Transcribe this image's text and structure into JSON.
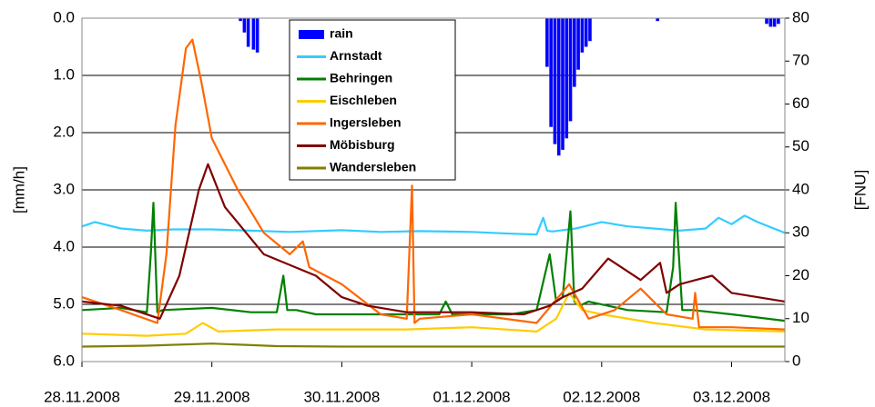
{
  "chart_data": {
    "type": "bar-line",
    "y_label": "[mm/h]",
    "y2_label": "[FNU]",
    "xlim": [
      0,
      5.41
    ],
    "xticks": [
      {
        "value": 0,
        "label": "28.11.2008"
      },
      {
        "value": 1,
        "label": "29.11.2008"
      },
      {
        "value": 2,
        "label": "30.11.2008"
      },
      {
        "value": 3,
        "label": "01.12.2008"
      },
      {
        "value": 4,
        "label": "02.12.2008"
      },
      {
        "value": 5,
        "label": "03.12.2008"
      }
    ],
    "ylim": [
      6,
      0
    ],
    "yticks": [
      {
        "value": 0,
        "label": "0.0"
      },
      {
        "value": 1,
        "label": "1.0"
      },
      {
        "value": 2,
        "label": "2.0"
      },
      {
        "value": 3,
        "label": "3.0"
      },
      {
        "value": 4,
        "label": "4.0"
      },
      {
        "value": 5,
        "label": "5.0"
      },
      {
        "value": 6,
        "label": "6.0"
      }
    ],
    "y2lim": [
      0,
      80
    ],
    "y2ticks": [
      0,
      10,
      20,
      30,
      40,
      50,
      60,
      70,
      80
    ],
    "grid": true,
    "series": [
      {
        "name": "rain",
        "type": "bar",
        "color": "#0000ff",
        "x": [
          1.22,
          1.25,
          1.28,
          1.32,
          1.35,
          3.58,
          3.61,
          3.64,
          3.67,
          3.7,
          3.73,
          3.76,
          3.79,
          3.82,
          3.85,
          3.88,
          3.91,
          4.43,
          5.27,
          5.3,
          5.33,
          5.36
        ],
        "values": [
          0.05,
          0.25,
          0.5,
          0.55,
          0.6,
          0.85,
          1.9,
          2.2,
          2.4,
          2.3,
          2.1,
          1.8,
          1.2,
          0.9,
          0.6,
          0.5,
          0.4,
          0.05,
          0.1,
          0.15,
          0.15,
          0.1
        ]
      },
      {
        "name": "Arnstadt",
        "type": "line",
        "axis": "y2",
        "color": "#33ccff",
        "x": [
          0,
          0.1,
          0.3,
          0.5,
          0.7,
          1.0,
          1.3,
          1.6,
          2.0,
          2.3,
          2.6,
          3.0,
          3.3,
          3.5,
          3.55,
          3.58,
          3.62,
          3.8,
          4.0,
          4.2,
          4.4,
          4.6,
          4.8,
          4.9,
          5.0,
          5.1,
          5.2,
          5.41
        ],
        "values": [
          31.5,
          32.5,
          31,
          30.5,
          30.8,
          30.8,
          30.5,
          30.2,
          30.6,
          30.2,
          30.4,
          30.2,
          29.8,
          29.6,
          33.5,
          30.5,
          30.3,
          31,
          32.5,
          31.5,
          31,
          30.5,
          31,
          33.5,
          32,
          34,
          32.5,
          30
        ]
      },
      {
        "name": "Behringen",
        "type": "line",
        "axis": "y2",
        "color": "#008000",
        "x": [
          0,
          0.3,
          0.5,
          0.53,
          0.55,
          0.58,
          0.62,
          1.0,
          1.3,
          1.5,
          1.55,
          1.58,
          1.65,
          1.8,
          2.3,
          2.75,
          2.8,
          2.85,
          3.3,
          3.5,
          3.6,
          3.65,
          3.7,
          3.76,
          3.79,
          3.83,
          3.9,
          4.2,
          4.5,
          4.55,
          4.57,
          4.62,
          4.7,
          5.0,
          5.41
        ],
        "values": [
          12,
          12.5,
          11.5,
          25,
          37,
          11.5,
          12,
          12.5,
          11.5,
          11.5,
          20,
          12,
          12,
          11,
          11,
          11,
          14,
          11,
          11,
          12,
          25,
          14,
          15,
          35,
          14,
          13,
          14,
          12,
          11.5,
          22,
          37,
          12,
          12,
          11,
          9.5
        ]
      },
      {
        "name": "Eischleben",
        "type": "line",
        "axis": "y2",
        "color": "#ffcc00",
        "x": [
          0,
          0.5,
          0.8,
          0.93,
          1.05,
          1.5,
          2.0,
          2.5,
          3.0,
          3.5,
          3.65,
          3.75,
          3.85,
          4.0,
          4.4,
          4.8,
          5.41
        ],
        "values": [
          6.5,
          6,
          6.5,
          9,
          7,
          7.5,
          7.5,
          7.5,
          8,
          7,
          10,
          16,
          12,
          11,
          9,
          7.5,
          7
        ]
      },
      {
        "name": "Ingersleben",
        "type": "line",
        "axis": "y2",
        "color": "#ff6600",
        "x": [
          0,
          0.3,
          0.58,
          0.65,
          0.72,
          0.8,
          0.85,
          0.92,
          1.0,
          1.2,
          1.4,
          1.6,
          1.7,
          1.75,
          2.0,
          2.3,
          2.5,
          2.54,
          2.56,
          2.6,
          3.0,
          3.5,
          3.75,
          3.9,
          4.1,
          4.3,
          4.5,
          4.7,
          4.72,
          4.75,
          5.0,
          5.41
        ],
        "values": [
          15,
          12,
          9,
          25,
          55,
          73,
          75,
          65,
          52,
          40,
          30,
          25,
          28,
          22,
          18,
          11,
          10,
          41,
          9,
          10,
          11,
          9,
          18,
          10,
          12,
          17,
          11,
          10,
          16,
          8,
          8,
          7.5
        ]
      },
      {
        "name": "Möbisburg",
        "type": "line",
        "axis": "y2",
        "color": "#800000",
        "x": [
          0,
          0.3,
          0.6,
          0.75,
          0.9,
          0.97,
          1.1,
          1.4,
          1.8,
          2.0,
          2.2,
          2.5,
          3.0,
          3.4,
          3.6,
          3.7,
          3.85,
          4.05,
          4.3,
          4.45,
          4.5,
          4.6,
          4.85,
          5.0,
          5.41
        ],
        "values": [
          14,
          13,
          10,
          20,
          40,
          46,
          36,
          25,
          20,
          15,
          13,
          11.5,
          11.5,
          11,
          13,
          15,
          17,
          24,
          19,
          23,
          16,
          18,
          20,
          16,
          14
        ]
      },
      {
        "name": "Wandersleben",
        "type": "line",
        "axis": "y2",
        "color": "#808000",
        "x": [
          0,
          0.5,
          1.0,
          1.5,
          2.0,
          3.0,
          4.0,
          5.0,
          5.41
        ],
        "values": [
          3.5,
          3.7,
          4.2,
          3.6,
          3.5,
          3.5,
          3.5,
          3.5,
          3.5
        ]
      }
    ]
  }
}
